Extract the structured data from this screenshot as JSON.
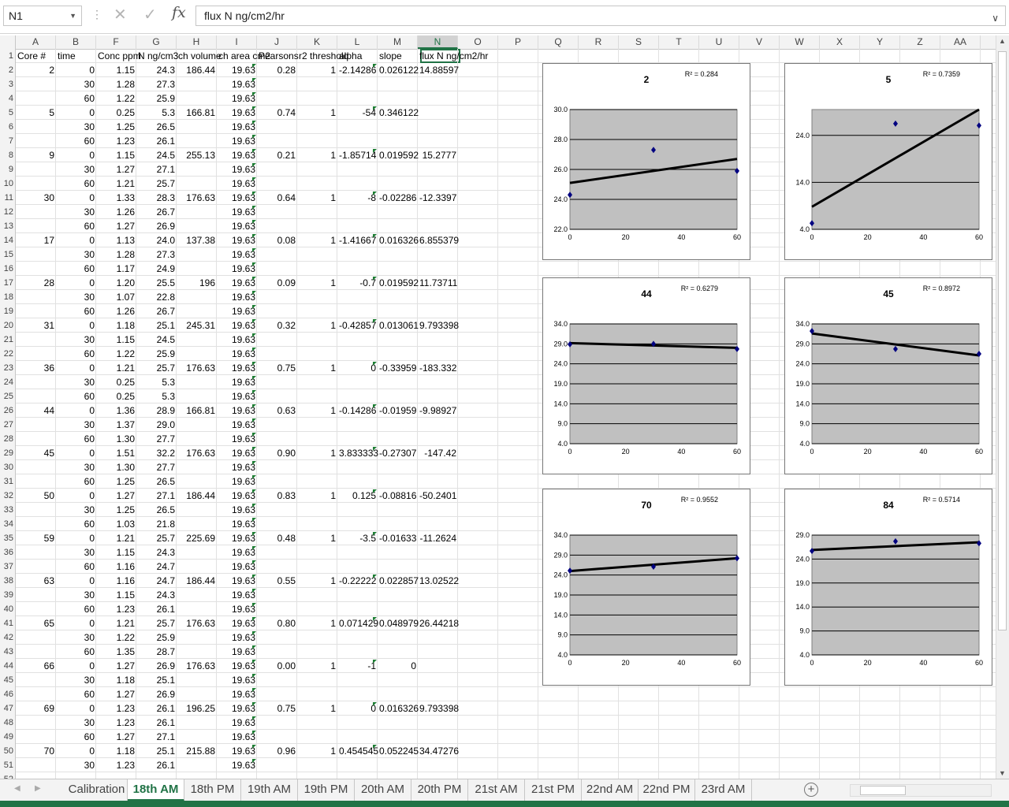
{
  "formula_bar": {
    "name_box": "N1",
    "formula": "flux N ng/cm2/hr",
    "fx_label": "fx",
    "cancel_glyph": "✕",
    "enter_glyph": "✓"
  },
  "columns": [
    "A",
    "B",
    "F",
    "G",
    "H",
    "I",
    "J",
    "K",
    "L",
    "M",
    "N",
    "O",
    "P",
    "Q",
    "R",
    "S",
    "T",
    "U",
    "V",
    "W",
    "X",
    "Y",
    "Z",
    "AA"
  ],
  "selected_column": "N",
  "header_row": {
    "A": "Core #",
    "B": "time",
    "F": "Conc ppm",
    "G": "N ng/cm3",
    "H": "ch volume",
    "I": "ch area cm2",
    "J": "Pearsons",
    "K": "r2 threshold",
    "L": "alpha",
    "M": "slope",
    "N": "flux N ng/cm2/hr"
  },
  "rows": [
    {
      "r": 2,
      "A": "2",
      "B": "0",
      "F": "1.15",
      "G": "24.3",
      "H": "186.44",
      "I": "19.63",
      "J": "0.28",
      "K": "1",
      "L": "-2.14286",
      "M": "0.026122",
      "N": "14.88597"
    },
    {
      "r": 3,
      "B": "30",
      "F": "1.28",
      "G": "27.3",
      "I": "19.63"
    },
    {
      "r": 4,
      "B": "60",
      "F": "1.22",
      "G": "25.9",
      "I": "19.63"
    },
    {
      "r": 5,
      "A": "5",
      "B": "0",
      "F": "0.25",
      "G": "5.3",
      "H": "166.81",
      "I": "19.63",
      "J": "0.74",
      "K": "1",
      "L": "-54",
      "M": "0.346122"
    },
    {
      "r": 6,
      "B": "30",
      "F": "1.25",
      "G": "26.5",
      "I": "19.63"
    },
    {
      "r": 7,
      "B": "60",
      "F": "1.23",
      "G": "26.1",
      "I": "19.63"
    },
    {
      "r": 8,
      "A": "9",
      "B": "0",
      "F": "1.15",
      "G": "24.5",
      "H": "255.13",
      "I": "19.63",
      "J": "0.21",
      "K": "1",
      "L": "-1.85714",
      "M": "0.019592",
      "N": "15.2777"
    },
    {
      "r": 9,
      "B": "30",
      "F": "1.27",
      "G": "27.1",
      "I": "19.63"
    },
    {
      "r": 10,
      "B": "60",
      "F": "1.21",
      "G": "25.7",
      "I": "19.63"
    },
    {
      "r": 11,
      "A": "30",
      "B": "0",
      "F": "1.33",
      "G": "28.3",
      "H": "176.63",
      "I": "19.63",
      "J": "0.64",
      "K": "1",
      "L": "-8",
      "M": "-0.02286",
      "N": "-12.3397"
    },
    {
      "r": 12,
      "B": "30",
      "F": "1.26",
      "G": "26.7",
      "I": "19.63"
    },
    {
      "r": 13,
      "B": "60",
      "F": "1.27",
      "G": "26.9",
      "I": "19.63"
    },
    {
      "r": 14,
      "A": "17",
      "B": "0",
      "F": "1.13",
      "G": "24.0",
      "H": "137.38",
      "I": "19.63",
      "J": "0.08",
      "K": "1",
      "L": "-1.41667",
      "M": "0.016326",
      "N": "6.855379"
    },
    {
      "r": 15,
      "B": "30",
      "F": "1.28",
      "G": "27.3",
      "I": "19.63"
    },
    {
      "r": 16,
      "B": "60",
      "F": "1.17",
      "G": "24.9",
      "I": "19.63"
    },
    {
      "r": 17,
      "A": "28",
      "B": "0",
      "F": "1.20",
      "G": "25.5",
      "H": "196",
      "I": "19.63",
      "J": "0.09",
      "K": "1",
      "L": "-0.7",
      "M": "0.019592",
      "N": "11.73711"
    },
    {
      "r": 18,
      "B": "30",
      "F": "1.07",
      "G": "22.8",
      "I": "19.63"
    },
    {
      "r": 19,
      "B": "60",
      "F": "1.26",
      "G": "26.7",
      "I": "19.63"
    },
    {
      "r": 20,
      "A": "31",
      "B": "0",
      "F": "1.18",
      "G": "25.1",
      "H": "245.31",
      "I": "19.63",
      "J": "0.32",
      "K": "1",
      "L": "-0.42857",
      "M": "0.013061",
      "N": "9.793398"
    },
    {
      "r": 21,
      "B": "30",
      "F": "1.15",
      "G": "24.5",
      "I": "19.63"
    },
    {
      "r": 22,
      "B": "60",
      "F": "1.22",
      "G": "25.9",
      "I": "19.63"
    },
    {
      "r": 23,
      "A": "36",
      "B": "0",
      "F": "1.21",
      "G": "25.7",
      "H": "176.63",
      "I": "19.63",
      "J": "0.75",
      "K": "1",
      "L": "0",
      "M": "-0.33959",
      "N": "-183.332"
    },
    {
      "r": 24,
      "B": "30",
      "F": "0.25",
      "G": "5.3",
      "I": "19.63"
    },
    {
      "r": 25,
      "B": "60",
      "F": "0.25",
      "G": "5.3",
      "I": "19.63"
    },
    {
      "r": 26,
      "A": "44",
      "B": "0",
      "F": "1.36",
      "G": "28.9",
      "H": "166.81",
      "I": "19.63",
      "J": "0.63",
      "K": "1",
      "L": "-0.14286",
      "M": "-0.01959",
      "N": "-9.98927"
    },
    {
      "r": 27,
      "B": "30",
      "F": "1.37",
      "G": "29.0",
      "I": "19.63"
    },
    {
      "r": 28,
      "B": "60",
      "F": "1.30",
      "G": "27.7",
      "I": "19.63"
    },
    {
      "r": 29,
      "A": "45",
      "B": "0",
      "F": "1.51",
      "G": "32.2",
      "H": "176.63",
      "I": "19.63",
      "J": "0.90",
      "K": "1",
      "L": "3.833333",
      "M": "-0.27307",
      "N": "-147.42"
    },
    {
      "r": 30,
      "B": "30",
      "F": "1.30",
      "G": "27.7",
      "I": "19.63"
    },
    {
      "r": 31,
      "B": "60",
      "F": "1.25",
      "G": "26.5",
      "I": "19.63"
    },
    {
      "r": 32,
      "A": "50",
      "B": "0",
      "F": "1.27",
      "G": "27.1",
      "H": "186.44",
      "I": "19.63",
      "J": "0.83",
      "K": "1",
      "L": "0.125",
      "M": "-0.08816",
      "N": "-50.2401"
    },
    {
      "r": 33,
      "B": "30",
      "F": "1.25",
      "G": "26.5",
      "I": "19.63"
    },
    {
      "r": 34,
      "B": "60",
      "F": "1.03",
      "G": "21.8",
      "I": "19.63"
    },
    {
      "r": 35,
      "A": "59",
      "B": "0",
      "F": "1.21",
      "G": "25.7",
      "H": "225.69",
      "I": "19.63",
      "J": "0.48",
      "K": "1",
      "L": "-3.5",
      "M": "-0.01633",
      "N": "-11.2624"
    },
    {
      "r": 36,
      "B": "30",
      "F": "1.15",
      "G": "24.3",
      "I": "19.63"
    },
    {
      "r": 37,
      "B": "60",
      "F": "1.16",
      "G": "24.7",
      "I": "19.63"
    },
    {
      "r": 38,
      "A": "63",
      "B": "0",
      "F": "1.16",
      "G": "24.7",
      "H": "186.44",
      "I": "19.63",
      "J": "0.55",
      "K": "1",
      "L": "-0.22222",
      "M": "0.022857",
      "N": "13.02522"
    },
    {
      "r": 39,
      "B": "30",
      "F": "1.15",
      "G": "24.3",
      "I": "19.63"
    },
    {
      "r": 40,
      "B": "60",
      "F": "1.23",
      "G": "26.1",
      "I": "19.63"
    },
    {
      "r": 41,
      "A": "65",
      "B": "0",
      "F": "1.21",
      "G": "25.7",
      "H": "176.63",
      "I": "19.63",
      "J": "0.80",
      "K": "1",
      "L": "0.071429",
      "M": "0.048979",
      "N": "26.44218"
    },
    {
      "r": 42,
      "B": "30",
      "F": "1.22",
      "G": "25.9",
      "I": "19.63"
    },
    {
      "r": 43,
      "B": "60",
      "F": "1.35",
      "G": "28.7",
      "I": "19.63"
    },
    {
      "r": 44,
      "A": "66",
      "B": "0",
      "F": "1.27",
      "G": "26.9",
      "H": "176.63",
      "I": "19.63",
      "J": "0.00",
      "K": "1",
      "L": "-1",
      "M": "0"
    },
    {
      "r": 45,
      "B": "30",
      "F": "1.18",
      "G": "25.1",
      "I": "19.63"
    },
    {
      "r": 46,
      "B": "60",
      "F": "1.27",
      "G": "26.9",
      "I": "19.63"
    },
    {
      "r": 47,
      "A": "69",
      "B": "0",
      "F": "1.23",
      "G": "26.1",
      "H": "196.25",
      "I": "19.63",
      "J": "0.75",
      "K": "1",
      "L": "0",
      "M": "0.016326",
      "N": "9.793398"
    },
    {
      "r": 48,
      "B": "30",
      "F": "1.23",
      "G": "26.1",
      "I": "19.63"
    },
    {
      "r": 49,
      "B": "60",
      "F": "1.27",
      "G": "27.1",
      "I": "19.63"
    },
    {
      "r": 50,
      "A": "70",
      "B": "0",
      "F": "1.18",
      "G": "25.1",
      "H": "215.88",
      "I": "19.63",
      "J": "0.96",
      "K": "1",
      "L": "0.454545",
      "M": "0.052245",
      "N": "34.47276"
    },
    {
      "r": 51,
      "B": "30",
      "F": "1.23",
      "G": "26.1",
      "I": "19.63"
    }
  ],
  "chart_data": [
    {
      "type": "scatter",
      "title": "2",
      "r2_label": "R² = 0.284",
      "x": [
        0,
        30,
        60
      ],
      "y": [
        24.3,
        27.3,
        25.9
      ],
      "trend": [
        25.1,
        26.7
      ],
      "ylim": [
        22,
        30
      ],
      "yticks": [
        "22.0",
        "24.0",
        "26.0",
        "28.0",
        "30.0"
      ],
      "xticks": [
        "0",
        "20",
        "40",
        "60"
      ]
    },
    {
      "type": "scatter",
      "title": "5",
      "r2_label": "R² = 0.7359",
      "x": [
        0,
        30,
        60
      ],
      "y": [
        5.3,
        26.5,
        26.1
      ],
      "trend": [
        8.8,
        29.5
      ],
      "ylim": [
        4,
        29.5
      ],
      "yticks": [
        "4.0",
        "14.0",
        "24.0"
      ],
      "xticks": [
        "0",
        "20",
        "40",
        "60"
      ]
    },
    {
      "type": "scatter",
      "title": "44",
      "r2_label": "R² = 0.6279",
      "x": [
        0,
        30,
        60
      ],
      "y": [
        28.9,
        29.0,
        27.7
      ],
      "trend": [
        29.2,
        28.0
      ],
      "ylim": [
        4,
        34
      ],
      "yticks": [
        "4.0",
        "9.0",
        "14.0",
        "19.0",
        "24.0",
        "29.0",
        "34.0"
      ],
      "xticks": [
        "0",
        "20",
        "40",
        "60"
      ]
    },
    {
      "type": "scatter",
      "title": "45",
      "r2_label": "R² = 0.8972",
      "x": [
        0,
        30,
        60
      ],
      "y": [
        32.2,
        27.7,
        26.5
      ],
      "trend": [
        31.6,
        26.1
      ],
      "ylim": [
        4,
        34
      ],
      "yticks": [
        "4.0",
        "9.0",
        "14.0",
        "19.0",
        "24.0",
        "29.0",
        "34.0"
      ],
      "xticks": [
        "0",
        "20",
        "40",
        "60"
      ]
    },
    {
      "type": "scatter",
      "title": "70",
      "r2_label": "R² = 0.9552",
      "x": [
        0,
        30,
        60
      ],
      "y": [
        25.1,
        26.1,
        28.2
      ],
      "trend": [
        25.0,
        28.2
      ],
      "ylim": [
        4,
        34
      ],
      "yticks": [
        "4.0",
        "9.0",
        "14.0",
        "19.0",
        "24.0",
        "29.0",
        "34.0"
      ],
      "xticks": [
        "0",
        "20",
        "40",
        "60"
      ]
    },
    {
      "type": "scatter",
      "title": "84",
      "r2_label": "R² = 0.5714",
      "x": [
        0,
        30,
        60
      ],
      "y": [
        25.7,
        27.7,
        27.3
      ],
      "trend": [
        25.9,
        27.5
      ],
      "ylim": [
        4,
        29
      ],
      "yticks": [
        "4.0",
        "9.0",
        "14.0",
        "19.0",
        "24.0",
        "29.0"
      ],
      "xticks": [
        "0",
        "20",
        "40",
        "60"
      ]
    }
  ],
  "sheet_tabs": [
    "Calibration",
    "18th AM",
    "18th PM",
    "19th AM",
    "19th PM",
    "20th AM",
    "20th PM",
    "21st AM",
    "21st PM",
    "22nd AM",
    "22nd PM",
    "23rd AM"
  ],
  "active_tab": "18th AM",
  "colors": {
    "accent": "#217346",
    "plot_area": "#c0c0c0",
    "marker": "#000080",
    "trendline": "#000000"
  },
  "icons": {
    "add_sheet": "plus-circle-icon",
    "tab_prev": "chevron-left-icon",
    "tab_next": "chevron-right-icon"
  }
}
